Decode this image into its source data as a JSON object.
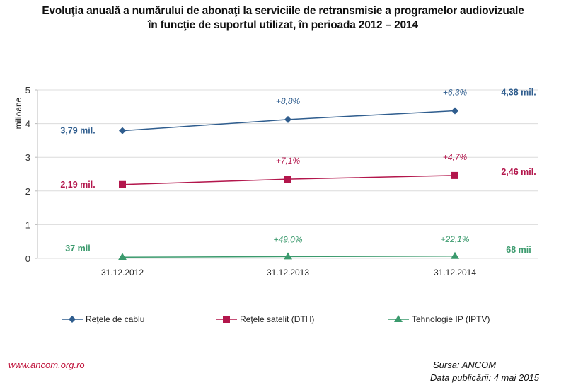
{
  "title_lines": [
    "Evoluţia anuală a numărului de abonaţi la serviciile de retransmisie a programelor audiovizuale",
    "în funcţie de suportul utilizat, în perioada 2012 – 2014"
  ],
  "chart_data": {
    "type": "line",
    "ylabel": "milioane",
    "ylim": [
      0,
      5
    ],
    "yticks": [
      "0",
      "1",
      "2",
      "3",
      "4",
      "5"
    ],
    "categories": [
      "31.12.2012",
      "31.12.2013",
      "31.12.2014"
    ],
    "grid": true,
    "legend_position": "bottom",
    "series": [
      {
        "name": "Reţele de cablu",
        "color": "#2f5d8e",
        "marker": "diamond",
        "values": [
          3.79,
          4.12,
          4.38
        ],
        "start_label": "3,79 mil.",
        "end_label": "4,38 mil.",
        "growth_labels": [
          "+8,8%",
          "+6,3%"
        ]
      },
      {
        "name": "Reţele satelit (DTH)",
        "color": "#b3164c",
        "marker": "square",
        "values": [
          2.19,
          2.35,
          2.46
        ],
        "start_label": "2,19 mil.",
        "end_label": "2,46 mil.",
        "growth_labels": [
          "+7,1%",
          "+4,7%"
        ]
      },
      {
        "name": "Tehnologie IP (IPTV)",
        "color": "#3b9a6d",
        "marker": "triangle",
        "values": [
          0.037,
          0.055,
          0.068
        ],
        "start_label": "37 mii",
        "end_label": "68 mii",
        "growth_labels": [
          "+49,0%",
          "+22,1%"
        ]
      }
    ]
  },
  "footer": {
    "url": "www.ancom.org.ro",
    "source": "Sursa: ANCOM",
    "date": "Data publicării: 4 mai 2015"
  }
}
